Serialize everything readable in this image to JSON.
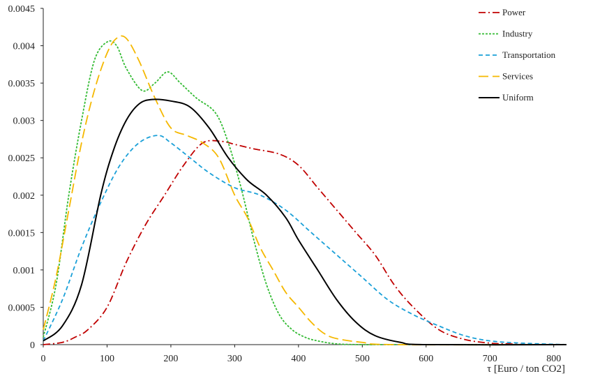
{
  "chart_data": {
    "type": "line",
    "title": "",
    "xlabel": "τ [Euro / ton CO2]",
    "ylabel": "",
    "xlim": [
      0,
      820
    ],
    "ylim": [
      0,
      0.0045
    ],
    "x_ticks": [
      0,
      100,
      200,
      300,
      400,
      500,
      600,
      700,
      800
    ],
    "x_tick_labels": [
      "0",
      "100",
      "200",
      "300",
      "400",
      "500",
      "600",
      "700",
      "800"
    ],
    "y_ticks": [
      0,
      0.0005,
      0.001,
      0.0015,
      0.002,
      0.0025,
      0.003,
      0.0035,
      0.004,
      0.0045
    ],
    "y_tick_labels": [
      "0",
      "0.0005",
      "0.001",
      "0.0015",
      "0.002",
      "0.0025",
      "0.003",
      "0.0035",
      "0.004",
      "0.0045"
    ],
    "grid": false,
    "legend_position": "top-right",
    "series": [
      {
        "name": "Power",
        "color": "#c00000",
        "dash": "dash-dot",
        "x": [
          0,
          30,
          50,
          70,
          100,
          130,
          160,
          190,
          220,
          250,
          280,
          300,
          330,
          370,
          400,
          430,
          460,
          490,
          520,
          550,
          580,
          620,
          660,
          700,
          730,
          760,
          820
        ],
        "y": [
          0,
          3e-05,
          0.0001,
          0.0002,
          0.0005,
          0.0011,
          0.0016,
          0.002,
          0.0024,
          0.0027,
          0.00272,
          0.00268,
          0.00262,
          0.00255,
          0.0024,
          0.0021,
          0.0018,
          0.0015,
          0.0012,
          0.0008,
          0.0005,
          0.0002,
          7e-05,
          2e-05,
          1e-05,
          0,
          0
        ]
      },
      {
        "name": "Industry",
        "color": "#33bb33",
        "dash": "dotted",
        "x": [
          0,
          20,
          40,
          60,
          80,
          100,
          115,
          130,
          155,
          175,
          195,
          215,
          240,
          270,
          290,
          310,
          330,
          350,
          370,
          390,
          410,
          430,
          460,
          500,
          550,
          820
        ],
        "y": [
          0.0001,
          0.0008,
          0.002,
          0.003,
          0.0038,
          0.00405,
          0.004,
          0.0037,
          0.0034,
          0.0035,
          0.00365,
          0.0035,
          0.0033,
          0.0031,
          0.0027,
          0.0021,
          0.0014,
          0.0008,
          0.0004,
          0.0002,
          0.0001,
          5e-05,
          1e-05,
          0,
          0,
          0
        ]
      },
      {
        "name": "Transportation",
        "color": "#1aa0d8",
        "dash": "dashed",
        "x": [
          0,
          30,
          60,
          90,
          120,
          150,
          180,
          200,
          230,
          260,
          300,
          340,
          380,
          420,
          460,
          500,
          540,
          580,
          620,
          660,
          700,
          750,
          820
        ],
        "y": [
          5e-05,
          0.0006,
          0.0013,
          0.0019,
          0.0024,
          0.0027,
          0.0028,
          0.0027,
          0.0025,
          0.0023,
          0.0021,
          0.002,
          0.0018,
          0.0015,
          0.0012,
          0.0009,
          0.0006,
          0.0004,
          0.00025,
          0.00012,
          5e-05,
          2e-05,
          0
        ]
      },
      {
        "name": "Services",
        "color": "#f5b800",
        "dash": "long-dash",
        "x": [
          0,
          20,
          40,
          60,
          80,
          100,
          115,
          130,
          150,
          175,
          200,
          225,
          250,
          275,
          300,
          320,
          340,
          360,
          380,
          400,
          420,
          440,
          460,
          500,
          550,
          820
        ],
        "y": [
          0.0002,
          0.0009,
          0.0018,
          0.0027,
          0.0034,
          0.0039,
          0.0041,
          0.0041,
          0.0038,
          0.0033,
          0.0029,
          0.0028,
          0.0027,
          0.0025,
          0.002,
          0.0017,
          0.0013,
          0.001,
          0.0007,
          0.0005,
          0.0003,
          0.00015,
          8e-05,
          3e-05,
          0,
          0
        ]
      },
      {
        "name": "Uniform",
        "color": "#000000",
        "dash": "solid",
        "x": [
          0,
          30,
          60,
          90,
          110,
          130,
          150,
          170,
          200,
          230,
          260,
          290,
          320,
          350,
          380,
          400,
          430,
          460,
          490,
          520,
          560,
          600,
          820
        ],
        "y": [
          5e-05,
          0.00025,
          0.0008,
          0.002,
          0.0026,
          0.003,
          0.00322,
          0.00328,
          0.00326,
          0.00318,
          0.0029,
          0.0025,
          0.0022,
          0.002,
          0.0017,
          0.0014,
          0.001,
          0.0006,
          0.0003,
          0.00012,
          3e-05,
          0,
          0
        ]
      }
    ]
  }
}
